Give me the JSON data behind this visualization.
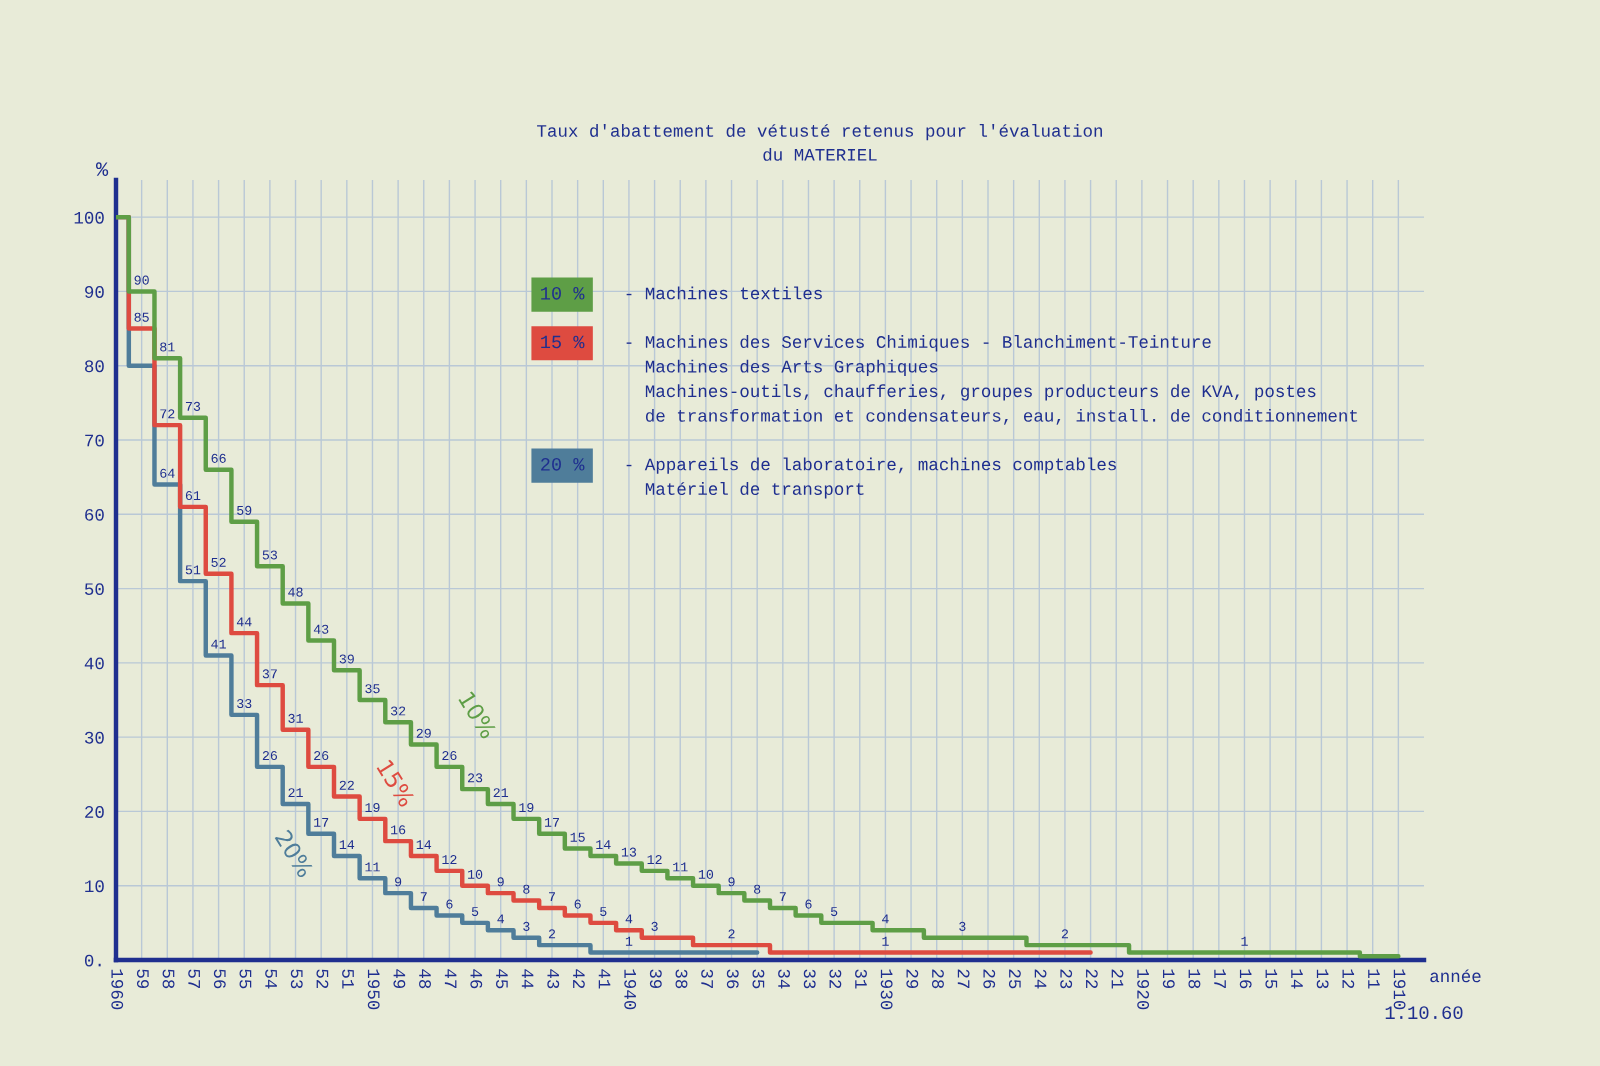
{
  "chart_data": {
    "type": "step",
    "title": "Taux d'abattement de vétusté retenus pour l'évaluation\ndu MATERIEL",
    "xlabel": "année",
    "ylabel": "%",
    "xlim": [
      1960,
      1909
    ],
    "xticks": [
      1960,
      {
        "value": 1959,
        "label": "59"
      },
      {
        "value": 1958,
        "label": "58"
      },
      {
        "value": 1957,
        "label": "57"
      },
      {
        "value": 1956,
        "label": "56"
      },
      {
        "value": 1955,
        "label": "55"
      },
      {
        "value": 1954,
        "label": "54"
      },
      {
        "value": 1953,
        "label": "53"
      },
      {
        "value": 1952,
        "label": "52"
      },
      {
        "value": 1951,
        "label": "51"
      },
      1950,
      {
        "value": 1949,
        "label": "49"
      },
      {
        "value": 1948,
        "label": "48"
      },
      {
        "value": 1947,
        "label": "47"
      },
      {
        "value": 1946,
        "label": "46"
      },
      {
        "value": 1945,
        "label": "45"
      },
      {
        "value": 1944,
        "label": "44"
      },
      {
        "value": 1943,
        "label": "43"
      },
      {
        "value": 1942,
        "label": "42"
      },
      {
        "value": 1941,
        "label": "41"
      },
      1940,
      {
        "value": 1939,
        "label": "39"
      },
      {
        "value": 1938,
        "label": "38"
      },
      {
        "value": 1937,
        "label": "37"
      },
      {
        "value": 1936,
        "label": "36"
      },
      {
        "value": 1935,
        "label": "35"
      },
      {
        "value": 1934,
        "label": "34"
      },
      {
        "value": 1933,
        "label": "33"
      },
      {
        "value": 1932,
        "label": "32"
      },
      {
        "value": 1931,
        "label": "31"
      },
      1930,
      {
        "value": 1929,
        "label": "29"
      },
      {
        "value": 1928,
        "label": "28"
      },
      {
        "value": 1927,
        "label": "27"
      },
      {
        "value": 1926,
        "label": "26"
      },
      {
        "value": 1925,
        "label": "25"
      },
      {
        "value": 1924,
        "label": "24"
      },
      {
        "value": 1923,
        "label": "23"
      },
      {
        "value": 1922,
        "label": "22"
      },
      {
        "value": 1921,
        "label": "21"
      },
      1920,
      {
        "value": 1919,
        "label": "19"
      },
      {
        "value": 1918,
        "label": "18"
      },
      {
        "value": 1917,
        "label": "17"
      },
      {
        "value": 1916,
        "label": "16"
      },
      {
        "value": 1915,
        "label": "15"
      },
      {
        "value": 1914,
        "label": "14"
      },
      {
        "value": 1913,
        "label": "13"
      },
      {
        "value": 1912,
        "label": "12"
      },
      {
        "value": 1911,
        "label": "11"
      },
      1910
    ],
    "ylim": [
      0,
      105
    ],
    "yticks": [
      {
        "value": 0,
        "label": "0."
      },
      10,
      20,
      30,
      40,
      50,
      60,
      70,
      80,
      90,
      100
    ],
    "grid": true,
    "legend": "top left",
    "series": [
      {
        "name": "10 %",
        "color": "#5e9e46",
        "x": [
          1960,
          1959,
          1958,
          1957,
          1956,
          1955,
          1954,
          1953,
          1952,
          1951,
          1950,
          1949,
          1948,
          1947,
          1946,
          1945,
          1944,
          1943,
          1942,
          1941,
          1940,
          1939,
          1938,
          1937,
          1936,
          1935,
          1934,
          1933,
          1932,
          1931,
          1930,
          1929,
          1928,
          1927,
          1926,
          1925,
          1924,
          1923,
          1922,
          1921,
          1920,
          1919,
          1918,
          1917,
          1916,
          1915,
          1914,
          1913,
          1912,
          1911,
          1910
        ],
        "values": [
          100,
          90,
          81,
          73,
          66,
          59,
          53,
          48,
          43,
          39,
          35,
          32,
          29,
          26,
          23,
          21,
          19,
          17,
          15,
          14,
          13,
          12,
          11,
          10,
          9,
          8,
          7,
          6,
          5,
          5,
          4,
          4,
          3,
          3,
          3,
          3,
          2,
          2,
          2,
          2,
          1,
          1,
          1,
          1,
          1,
          1,
          1,
          1,
          1,
          0.5,
          0.5
        ],
        "value_labels": [
          null,
          "90",
          "81",
          "73",
          "66",
          "59",
          "53",
          "48",
          "43",
          "39",
          "35",
          "32",
          "29",
          "26",
          "23",
          "21",
          "19",
          "17",
          "15",
          "14",
          "13",
          "12",
          "11",
          "10",
          "9",
          "8",
          "7",
          "6",
          "5",
          null,
          "4",
          null,
          null,
          "3",
          null,
          null,
          null,
          "2",
          null,
          null,
          null,
          null,
          null,
          null,
          "1",
          null,
          null,
          null,
          null,
          null,
          null
        ]
      },
      {
        "name": "15 %",
        "color": "#de4b40",
        "x": [
          1960,
          1959,
          1958,
          1957,
          1956,
          1955,
          1954,
          1953,
          1952,
          1951,
          1950,
          1949,
          1948,
          1947,
          1946,
          1945,
          1944,
          1943,
          1942,
          1941,
          1940,
          1939,
          1938,
          1937,
          1936,
          1935,
          1934,
          1933,
          1932,
          1931,
          1930,
          1929,
          1928,
          1927,
          1926,
          1925,
          1924,
          1923,
          1922
        ],
        "values": [
          100,
          85,
          72,
          61,
          52,
          44,
          37,
          31,
          26,
          22,
          19,
          16,
          14,
          12,
          10,
          9,
          8,
          7,
          6,
          5,
          4,
          3,
          3,
          2,
          2,
          2,
          1,
          1,
          1,
          1,
          1,
          1,
          1,
          1,
          1,
          1,
          1,
          1,
          1
        ],
        "value_labels": [
          null,
          "85",
          "72",
          "61",
          "52",
          "44",
          "37",
          "31",
          "26",
          "22",
          "19",
          "16",
          "14",
          "12",
          "10",
          "9",
          "8",
          "7",
          "6",
          "5",
          "4",
          "3",
          null,
          null,
          "2",
          null,
          null,
          null,
          null,
          null,
          "1",
          null,
          null,
          null,
          null,
          null,
          null,
          null,
          null
        ]
      },
      {
        "name": "20 %",
        "color": "#4f7d9a",
        "x": [
          1960,
          1959,
          1958,
          1957,
          1956,
          1955,
          1954,
          1953,
          1952,
          1951,
          1950,
          1949,
          1948,
          1947,
          1946,
          1945,
          1944,
          1943,
          1942,
          1941,
          1940,
          1939,
          1938,
          1937,
          1936,
          1935
        ],
        "values": [
          100,
          80,
          64,
          51,
          41,
          33,
          26,
          21,
          17,
          14,
          11,
          9,
          7,
          6,
          5,
          4,
          3,
          2,
          2,
          1,
          1,
          1,
          1,
          1,
          1,
          1
        ],
        "value_labels": [
          null,
          null,
          "64",
          "51",
          "41",
          "33",
          "26",
          "21",
          "17",
          "14",
          "11",
          "9",
          "7",
          "6",
          "5",
          "4",
          "3",
          "2",
          null,
          null,
          "1",
          null,
          null,
          null,
          null,
          null
        ]
      }
    ],
    "annotations": [
      "- Machines textiles",
      "- Machines des Services Chimiques - Blanchiment-Teinture\nMachines des Arts Graphiques\nMachines-outils, chaufferies, groupes producteurs de KVA, postes\nde transformation et condensateurs, eau, install. de conditionnement",
      "- Appareils de laboratoire, machines comptables\nMatériel de transport",
      "10%",
      "15%",
      "20%",
      "1.10.60"
    ]
  }
}
